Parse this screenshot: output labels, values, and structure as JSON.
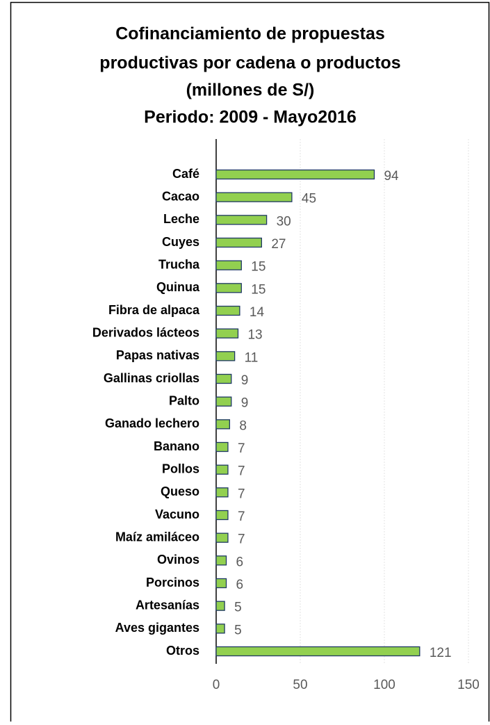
{
  "chart_data": {
    "type": "barh",
    "title": [
      "Cofinanciamiento de propuestas",
      "productivas por cadena o productos",
      "(millones de S/)",
      "Periodo: 2009 - Mayo2016"
    ],
    "categories": [
      "Café",
      "Cacao",
      "Leche",
      "Cuyes",
      "Trucha",
      "Quinua",
      "Fibra de alpaca",
      "Derivados lácteos",
      "Papas nativas",
      "Gallinas criollas",
      "Palto",
      "Ganado lechero",
      "Banano",
      "Pollos",
      "Queso",
      "Vacuno",
      "Maíz amiláceo",
      "Ovinos",
      "Porcinos",
      "Artesanías",
      "Aves gigantes",
      "Otros"
    ],
    "values": [
      94,
      45,
      30,
      27,
      15,
      15,
      14,
      13,
      11,
      9,
      9,
      8,
      7,
      7,
      7,
      7,
      7,
      6,
      6,
      5,
      5,
      121
    ],
    "color": "#92d050",
    "xlim": [
      0,
      150
    ],
    "xticks": [
      0,
      50,
      100,
      150
    ],
    "grid": true
  }
}
